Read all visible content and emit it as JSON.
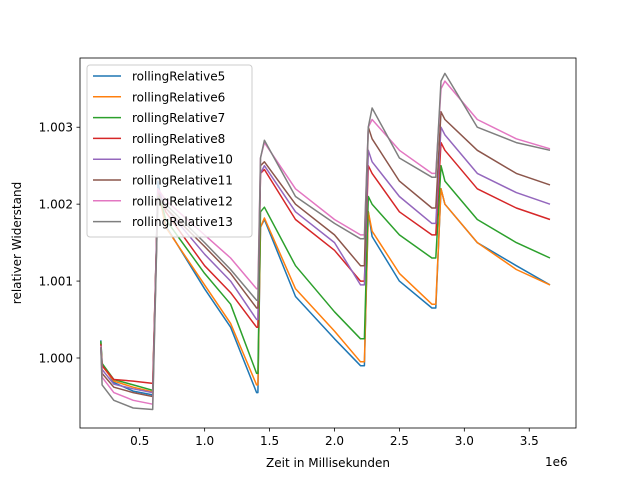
{
  "chart_data": {
    "type": "line",
    "xlabel": "Zeit in Millisekunden",
    "ylabel": "relativer Widerstand",
    "x_offset_label": "1e6",
    "xlim": [
      40000,
      3860000
    ],
    "ylim": [
      0.99909,
      1.0039
    ],
    "x_ticks": [
      {
        "value": 500000,
        "label": "0.5"
      },
      {
        "value": 1000000,
        "label": "1.0"
      },
      {
        "value": 1500000,
        "label": "1.5"
      },
      {
        "value": 2000000,
        "label": "2.0"
      },
      {
        "value": 2500000,
        "label": "2.5"
      },
      {
        "value": 3000000,
        "label": "3.0"
      },
      {
        "value": 3500000,
        "label": "3.5"
      }
    ],
    "y_ticks": [
      {
        "value": 1.0,
        "label": "1.000"
      },
      {
        "value": 1.001,
        "label": "1.001"
      },
      {
        "value": 1.002,
        "label": "1.002"
      },
      {
        "value": 1.003,
        "label": "1.003"
      }
    ],
    "grid": false,
    "legend_position": "top-left",
    "series": [
      {
        "name": "rollingRelative5",
        "color": "#1f77b4",
        "points": [
          [
            200000,
            1.00023
          ],
          [
            210000,
            0.99993
          ],
          [
            300000,
            0.99968
          ],
          [
            450000,
            0.99957
          ],
          [
            600000,
            0.99952
          ],
          [
            640000,
            1.0023
          ],
          [
            700000,
            1.00172
          ],
          [
            1000000,
            1.0009
          ],
          [
            1200000,
            1.0004
          ],
          [
            1400000,
            0.99955
          ],
          [
            1410000,
            0.99955
          ],
          [
            1430000,
            1.0017
          ],
          [
            1460000,
            1.0018
          ],
          [
            1700000,
            1.0008
          ],
          [
            2000000,
            1.00025
          ],
          [
            2200000,
            0.9999
          ],
          [
            2230000,
            0.9999
          ],
          [
            2260000,
            1.0019
          ],
          [
            2290000,
            1.00158
          ],
          [
            2500000,
            1.001
          ],
          [
            2750000,
            1.00065
          ],
          [
            2780000,
            1.00065
          ],
          [
            2820000,
            1.0022
          ],
          [
            2850000,
            1.002
          ],
          [
            3100000,
            1.0015
          ],
          [
            3400000,
            1.0012
          ],
          [
            3660000,
            1.00095
          ]
        ]
      },
      {
        "name": "rollingRelative6",
        "color": "#ff7f0e",
        "points": [
          [
            200000,
            1.0002
          ],
          [
            210000,
            0.9999
          ],
          [
            300000,
            0.9997
          ],
          [
            450000,
            0.99962
          ],
          [
            600000,
            0.99956
          ],
          [
            640000,
            1.0022
          ],
          [
            700000,
            1.0017
          ],
          [
            1000000,
            1.00095
          ],
          [
            1200000,
            1.00045
          ],
          [
            1400000,
            0.99965
          ],
          [
            1410000,
            0.99965
          ],
          [
            1430000,
            1.0017
          ],
          [
            1460000,
            1.00182
          ],
          [
            1700000,
            1.0009
          ],
          [
            2000000,
            1.00035
          ],
          [
            2200000,
            0.99995
          ],
          [
            2230000,
            0.99995
          ],
          [
            2260000,
            1.0019
          ],
          [
            2290000,
            1.00165
          ],
          [
            2500000,
            1.0011
          ],
          [
            2750000,
            1.0007
          ],
          [
            2780000,
            1.0007
          ],
          [
            2820000,
            1.0022
          ],
          [
            2850000,
            1.002
          ],
          [
            3100000,
            1.0015
          ],
          [
            3400000,
            1.00115
          ],
          [
            3660000,
            1.00095
          ]
        ]
      },
      {
        "name": "rollingRelative7",
        "color": "#2ca02c",
        "points": [
          [
            200000,
            1.00022
          ],
          [
            210000,
            0.99993
          ],
          [
            300000,
            0.99972
          ],
          [
            450000,
            0.99965
          ],
          [
            600000,
            0.99958
          ],
          [
            640000,
            1.0022
          ],
          [
            700000,
            1.0018
          ],
          [
            1000000,
            1.0011
          ],
          [
            1200000,
            1.0007
          ],
          [
            1400000,
            0.9998
          ],
          [
            1410000,
            0.9998
          ],
          [
            1430000,
            1.0019
          ],
          [
            1460000,
            1.00196
          ],
          [
            1700000,
            1.0012
          ],
          [
            2000000,
            1.0006
          ],
          [
            2200000,
            1.00025
          ],
          [
            2230000,
            1.00025
          ],
          [
            2260000,
            1.0021
          ],
          [
            2290000,
            1.002
          ],
          [
            2500000,
            1.0016
          ],
          [
            2750000,
            1.0013
          ],
          [
            2780000,
            1.0013
          ],
          [
            2820000,
            1.0025
          ],
          [
            2850000,
            1.0023
          ],
          [
            3100000,
            1.0018
          ],
          [
            3400000,
            1.0015
          ],
          [
            3660000,
            1.0013
          ]
        ]
      },
      {
        "name": "rollingRelative8",
        "color": "#d62728",
        "points": [
          [
            200000,
            1.00018
          ],
          [
            210000,
            0.9999
          ],
          [
            300000,
            0.99972
          ],
          [
            450000,
            0.9997
          ],
          [
            600000,
            0.99967
          ],
          [
            640000,
            1.0022
          ],
          [
            700000,
            1.0019
          ],
          [
            1000000,
            1.0012
          ],
          [
            1200000,
            1.00085
          ],
          [
            1400000,
            1.0004
          ],
          [
            1410000,
            1.0004
          ],
          [
            1430000,
            1.0024
          ],
          [
            1460000,
            1.00245
          ],
          [
            1700000,
            1.0018
          ],
          [
            2000000,
            1.0014
          ],
          [
            2200000,
            1.001
          ],
          [
            2230000,
            1.001
          ],
          [
            2260000,
            1.0025
          ],
          [
            2290000,
            1.0024
          ],
          [
            2500000,
            1.0019
          ],
          [
            2750000,
            1.0016
          ],
          [
            2780000,
            1.0016
          ],
          [
            2820000,
            1.0028
          ],
          [
            2850000,
            1.0027
          ],
          [
            3100000,
            1.0022
          ],
          [
            3400000,
            1.00195
          ],
          [
            3660000,
            1.0018
          ]
        ]
      },
      {
        "name": "rollingRelative10",
        "color": "#9467bd",
        "points": [
          [
            200000,
            1.00016
          ],
          [
            210000,
            0.99985
          ],
          [
            300000,
            0.99966
          ],
          [
            450000,
            0.9996
          ],
          [
            600000,
            0.99955
          ],
          [
            640000,
            1.0022
          ],
          [
            700000,
            1.00195
          ],
          [
            1000000,
            1.00135
          ],
          [
            1200000,
            1.001
          ],
          [
            1400000,
            1.0005
          ],
          [
            1410000,
            1.0005
          ],
          [
            1430000,
            1.0024
          ],
          [
            1460000,
            1.0025
          ],
          [
            1700000,
            1.0019
          ],
          [
            2000000,
            1.0015
          ],
          [
            2200000,
            1.00095
          ],
          [
            2230000,
            1.00095
          ],
          [
            2260000,
            1.0027
          ],
          [
            2290000,
            1.00255
          ],
          [
            2500000,
            1.0021
          ],
          [
            2750000,
            1.00175
          ],
          [
            2780000,
            1.00175
          ],
          [
            2820000,
            1.003
          ],
          [
            2850000,
            1.0029
          ],
          [
            3100000,
            1.0024
          ],
          [
            3400000,
            1.00215
          ],
          [
            3660000,
            1.002
          ]
        ]
      },
      {
        "name": "rollingRelative11",
        "color": "#8c564b",
        "points": [
          [
            200000,
            1.00015
          ],
          [
            210000,
            0.9998
          ],
          [
            300000,
            0.99962
          ],
          [
            450000,
            0.99955
          ],
          [
            600000,
            0.9995
          ],
          [
            640000,
            1.0021
          ],
          [
            700000,
            1.00195
          ],
          [
            1000000,
            1.00145
          ],
          [
            1200000,
            1.0011
          ],
          [
            1400000,
            1.00065
          ],
          [
            1410000,
            1.00065
          ],
          [
            1430000,
            1.0025
          ],
          [
            1460000,
            1.00255
          ],
          [
            1700000,
            1.002
          ],
          [
            2000000,
            1.0016
          ],
          [
            2200000,
            1.0012
          ],
          [
            2230000,
            1.0012
          ],
          [
            2260000,
            1.003
          ],
          [
            2290000,
            1.00285
          ],
          [
            2500000,
            1.0023
          ],
          [
            2750000,
            1.00195
          ],
          [
            2780000,
            1.00195
          ],
          [
            2820000,
            1.0032
          ],
          [
            2850000,
            1.0031
          ],
          [
            3100000,
            1.0027
          ],
          [
            3400000,
            1.0024
          ],
          [
            3660000,
            1.00225
          ]
        ]
      },
      {
        "name": "rollingRelative12",
        "color": "#e377c2",
        "points": [
          [
            200000,
            1.00016
          ],
          [
            210000,
            0.99975
          ],
          [
            300000,
            0.99955
          ],
          [
            450000,
            0.99945
          ],
          [
            600000,
            0.9994
          ],
          [
            640000,
            1.0022
          ],
          [
            700000,
            1.00205
          ],
          [
            1000000,
            1.0016
          ],
          [
            1200000,
            1.0013
          ],
          [
            1400000,
            1.0009
          ],
          [
            1410000,
            1.0009
          ],
          [
            1430000,
            1.0026
          ],
          [
            1460000,
            1.0028
          ],
          [
            1700000,
            1.0022
          ],
          [
            2000000,
            1.0018
          ],
          [
            2200000,
            1.0016
          ],
          [
            2230000,
            1.0016
          ],
          [
            2260000,
            1.003
          ],
          [
            2290000,
            1.0031
          ],
          [
            2500000,
            1.0027
          ],
          [
            2750000,
            1.0024
          ],
          [
            2780000,
            1.0024
          ],
          [
            2820000,
            1.0035
          ],
          [
            2850000,
            1.0036
          ],
          [
            3100000,
            1.0031
          ],
          [
            3400000,
            1.00285
          ],
          [
            3660000,
            1.00272
          ]
        ]
      },
      {
        "name": "rollingRelative13",
        "color": "#7f7f7f",
        "points": [
          [
            200000,
            1.00014
          ],
          [
            210000,
            0.99965
          ],
          [
            300000,
            0.99945
          ],
          [
            450000,
            0.99935
          ],
          [
            600000,
            0.99933
          ],
          [
            640000,
            1.0021
          ],
          [
            700000,
            1.002
          ],
          [
            1000000,
            1.0015
          ],
          [
            1200000,
            1.00115
          ],
          [
            1400000,
            1.00075
          ],
          [
            1410000,
            1.00075
          ],
          [
            1430000,
            1.0026
          ],
          [
            1460000,
            1.00283
          ],
          [
            1700000,
            1.0021
          ],
          [
            2000000,
            1.00175
          ],
          [
            2200000,
            1.00155
          ],
          [
            2230000,
            1.00155
          ],
          [
            2260000,
            1.003
          ],
          [
            2290000,
            1.00325
          ],
          [
            2500000,
            1.0026
          ],
          [
            2750000,
            1.00235
          ],
          [
            2780000,
            1.00235
          ],
          [
            2820000,
            1.0036
          ],
          [
            2850000,
            1.0037
          ],
          [
            3100000,
            1.003
          ],
          [
            3400000,
            1.0028
          ],
          [
            3660000,
            1.0027
          ]
        ]
      }
    ]
  }
}
